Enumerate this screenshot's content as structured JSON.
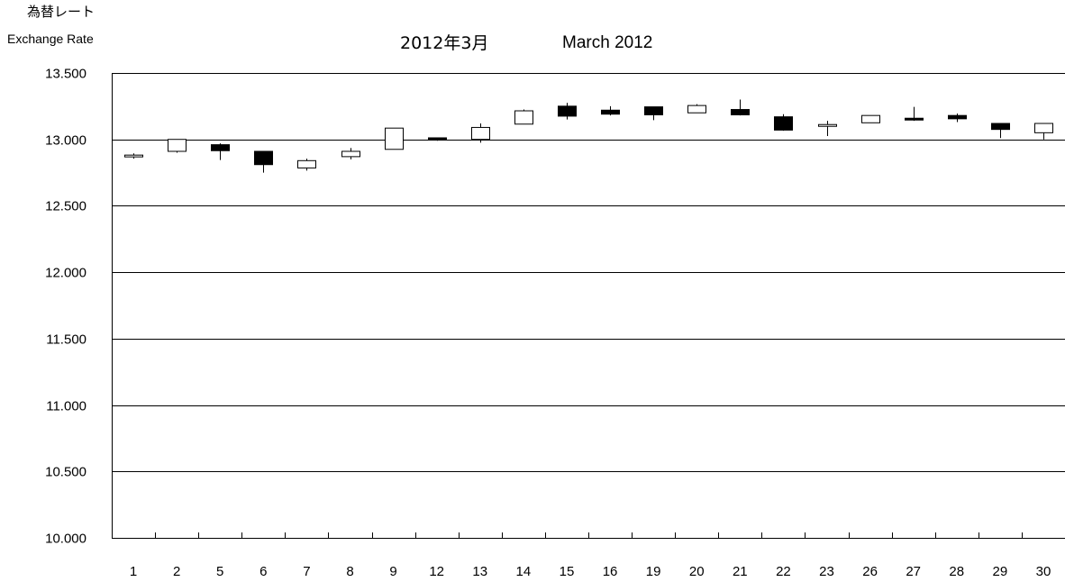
{
  "chart_data": {
    "type": "candlestick",
    "title_jp": "2012年3月",
    "title_en": "March 2012",
    "ylabel_jp": "為替レート",
    "ylabel_en": "Exchange Rate",
    "xlabel": "",
    "ylim": [
      10.0,
      13.5
    ],
    "y_ticks": [
      "13.500",
      "13.000",
      "12.500",
      "12.000",
      "11.500",
      "11.000",
      "10.500",
      "10.000"
    ],
    "y_tick_values": [
      13.5,
      13.0,
      12.5,
      12.0,
      11.5,
      11.0,
      10.5,
      10.0
    ],
    "grid": true,
    "categories": [
      "1",
      "2",
      "5",
      "6",
      "7",
      "8",
      "9",
      "12",
      "13",
      "14",
      "15",
      "16",
      "19",
      "20",
      "21",
      "22",
      "23",
      "26",
      "27",
      "28",
      "29",
      "30"
    ],
    "candles": [
      {
        "day": "1",
        "open": 12.875,
        "high": 12.895,
        "low": 12.855,
        "close": 12.875
      },
      {
        "day": "2",
        "open": 12.91,
        "high": 13.0,
        "low": 12.9,
        "close": 13.0
      },
      {
        "day": "5",
        "open": 12.96,
        "high": 12.97,
        "low": 12.845,
        "close": 12.915
      },
      {
        "day": "6",
        "open": 12.91,
        "high": 12.91,
        "low": 12.75,
        "close": 12.81
      },
      {
        "day": "7",
        "open": 12.785,
        "high": 12.855,
        "low": 12.765,
        "close": 12.84
      },
      {
        "day": "8",
        "open": 12.87,
        "high": 12.935,
        "low": 12.85,
        "close": 12.91
      },
      {
        "day": "9",
        "open": 12.925,
        "high": 13.085,
        "low": 12.925,
        "close": 13.085
      },
      {
        "day": "12",
        "open": 13.01,
        "high": 13.015,
        "low": 12.99,
        "close": 13.0
      },
      {
        "day": "13",
        "open": 13.0,
        "high": 13.12,
        "low": 12.975,
        "close": 13.09
      },
      {
        "day": "14",
        "open": 13.115,
        "high": 13.225,
        "low": 13.115,
        "close": 13.215
      },
      {
        "day": "15",
        "open": 13.25,
        "high": 13.275,
        "low": 13.15,
        "close": 13.175
      },
      {
        "day": "16",
        "open": 13.22,
        "high": 13.25,
        "low": 13.18,
        "close": 13.19
      },
      {
        "day": "19",
        "open": 13.245,
        "high": 13.245,
        "low": 13.145,
        "close": 13.185
      },
      {
        "day": "20",
        "open": 13.2,
        "high": 13.265,
        "low": 13.2,
        "close": 13.255
      },
      {
        "day": "21",
        "open": 13.225,
        "high": 13.3,
        "low": 13.18,
        "close": 13.185
      },
      {
        "day": "22",
        "open": 13.17,
        "high": 13.19,
        "low": 13.065,
        "close": 13.07
      },
      {
        "day": "23",
        "open": 13.1,
        "high": 13.14,
        "low": 13.025,
        "close": 13.11
      },
      {
        "day": "26",
        "open": 13.125,
        "high": 13.18,
        "low": 13.125,
        "close": 13.18
      },
      {
        "day": "27",
        "open": 13.155,
        "high": 13.245,
        "low": 13.14,
        "close": 13.15
      },
      {
        "day": "28",
        "open": 13.18,
        "high": 13.195,
        "low": 13.13,
        "close": 13.155
      },
      {
        "day": "29",
        "open": 13.12,
        "high": 13.12,
        "low": 13.01,
        "close": 13.075
      },
      {
        "day": "30",
        "open": 13.05,
        "high": 13.12,
        "low": 13.0,
        "close": 13.12
      }
    ],
    "colors": {
      "up_fill": "#ffffff",
      "down_fill": "#000000",
      "stroke": "#000000",
      "grid": "#000000",
      "background": "#ffffff"
    }
  }
}
